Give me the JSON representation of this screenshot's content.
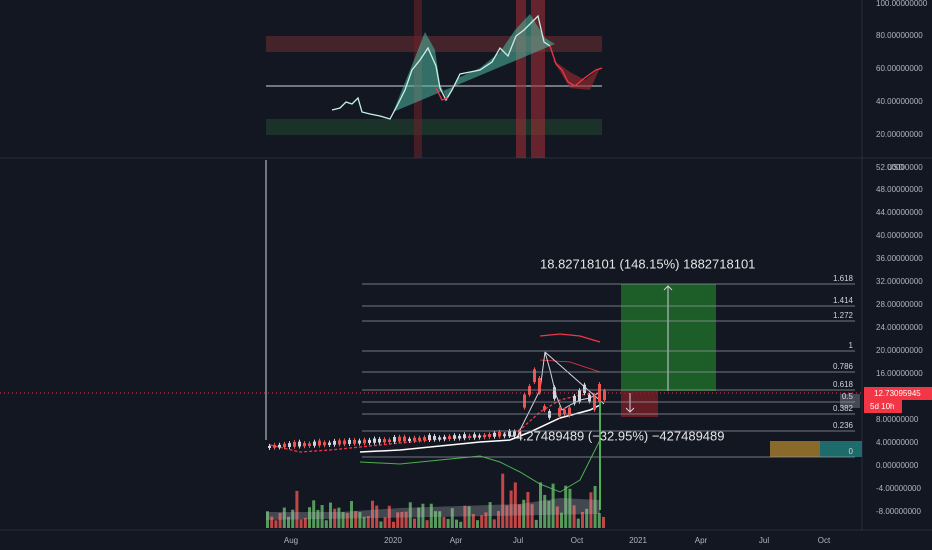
{
  "top_axis": [
    "100.00000000",
    "80.00000000",
    "60.00000000",
    "40.00000000",
    "20.00000000"
  ],
  "main_axis": [
    "52.00000000",
    "48.00000000",
    "44.00000000",
    "40.00000000",
    "36.00000000",
    "32.00000000",
    "28.00000000",
    "24.00000000",
    "20.00000000",
    "16.00000000",
    "8.00000000",
    "4.00000000",
    "0.00000000",
    "-4.00000000",
    "-8.00000000"
  ],
  "currency": "USD",
  "x_axis": [
    "Aug",
    "2020",
    "Apr",
    "Jul",
    "Oct",
    "2021",
    "Apr",
    "Jul",
    "Oct"
  ],
  "fib_levels": [
    "1.618",
    "1.414",
    "1.272",
    "1",
    "0.786",
    "0.618",
    "0.5",
    "0.382",
    "0.236",
    "0"
  ],
  "annotations": {
    "gain": "18.82718101 (148.15%) 1882718101",
    "loss": "−4.27489489 (−32.95%) −427489489"
  },
  "price_tag": {
    "price": "12.73095945",
    "countdown": "5d 10h"
  }
}
